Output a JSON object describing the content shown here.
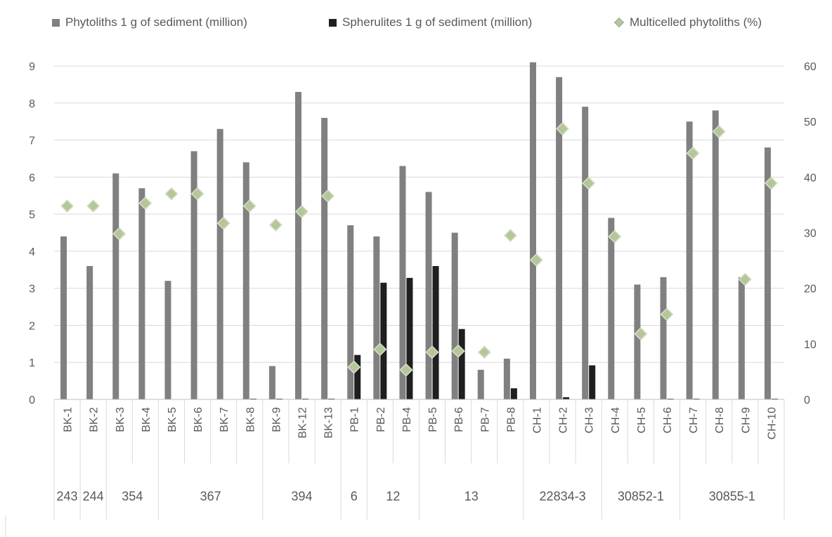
{
  "chart_data": {
    "type": "bar",
    "legend_position": "top",
    "grid": true,
    "categories": [
      "BK-1",
      "BK-2",
      "BK-3",
      "BK-4",
      "BK-5",
      "BK-6",
      "BK-7",
      "BK-8",
      "BK-9",
      "BK-12",
      "BK-13",
      "PB-1",
      "PB-2",
      "PB-4",
      "PB-5",
      "PB-6",
      "PB-7",
      "PB-8",
      "CH-1",
      "CH-2",
      "CH-3",
      "CH-4",
      "CH-5",
      "CH-6",
      "CH-7",
      "CH-8",
      "CH-9",
      "CH-10"
    ],
    "groups": [
      {
        "label": "243",
        "count": 1
      },
      {
        "label": "244",
        "count": 1
      },
      {
        "label": "354",
        "count": 2
      },
      {
        "label": "367",
        "count": 4
      },
      {
        "label": "394",
        "count": 3
      },
      {
        "label": "6",
        "count": 1
      },
      {
        "label": "12",
        "count": 2
      },
      {
        "label": "13",
        "count": 4
      },
      {
        "label": "22834-3",
        "count": 3
      },
      {
        "label": "30852-1",
        "count": 3
      },
      {
        "label": "30855-1",
        "count": 4
      }
    ],
    "y_left": {
      "min": 0,
      "max": 9,
      "ticks": [
        "0",
        "1",
        "2",
        "3",
        "4",
        "5",
        "6",
        "7",
        "8",
        "9"
      ]
    },
    "y_right": {
      "min": 0,
      "max": 60,
      "ticks": [
        "0",
        "10",
        "20",
        "30",
        "40",
        "50",
        "60"
      ]
    },
    "series": [
      {
        "name": "Phytoliths 1 g of  sediment (million)",
        "kind": "bar",
        "axis": "left",
        "color": "#808080",
        "values": [
          4.4,
          3.6,
          6.1,
          5.7,
          3.2,
          6.7,
          7.3,
          6.4,
          0.9,
          8.3,
          7.6,
          4.7,
          4.4,
          6.3,
          5.6,
          4.5,
          0.8,
          1.1,
          9.1,
          8.7,
          7.9,
          4.9,
          3.1,
          3.3,
          7.5,
          7.8,
          3.3,
          6.8
        ]
      },
      {
        "name": "Spherulites 1 g of  sediment (million)",
        "kind": "bar",
        "axis": "left",
        "color": "#1f1f1f",
        "values": [
          0,
          0,
          0,
          0,
          0,
          0,
          0,
          0.02,
          0.02,
          0.02,
          0.02,
          1.2,
          3.15,
          3.28,
          3.6,
          1.9,
          0,
          0.3,
          0,
          0.06,
          0.92,
          0,
          0,
          0.02,
          0.02,
          0,
          0,
          0.02
        ]
      },
      {
        "name": "Multicelled phytoliths (%)",
        "kind": "marker",
        "axis": "right",
        "color": "#b5c79a",
        "values": [
          34.8,
          34.8,
          29.8,
          35.3,
          37,
          37,
          31.7,
          34.8,
          31.4,
          33.8,
          36.6,
          5.8,
          9,
          5.3,
          8.5,
          8.7,
          8.5,
          29.5,
          25.1,
          48.7,
          38.9,
          29.3,
          11.8,
          15.3,
          44.3,
          48.2,
          21.6,
          38.9
        ]
      }
    ]
  }
}
